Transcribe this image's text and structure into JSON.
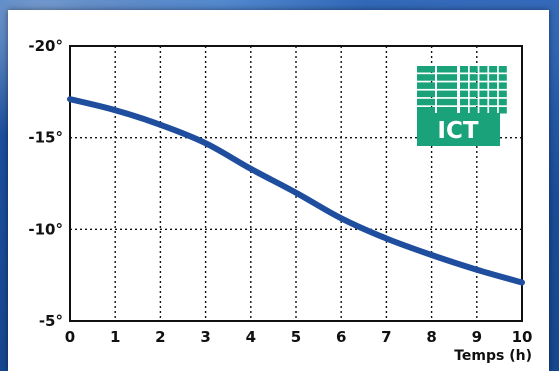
{
  "chart_data": {
    "type": "line",
    "title": "",
    "xlabel": "Temps (h)",
    "ylabel": "",
    "x": [
      0,
      1,
      2,
      3,
      4,
      5,
      6,
      7,
      8,
      9,
      10
    ],
    "series": [
      {
        "values": [
          17.1,
          16.5,
          15.7,
          14.7,
          13.3,
          12.0,
          10.6,
          9.5,
          8.6,
          7.8,
          7.1
        ]
      }
    ],
    "xlim": [
      0,
      10
    ],
    "ylim": [
      -20,
      -5
    ],
    "y_ticks": [
      -20,
      -15,
      -10,
      -5
    ],
    "y_tick_labels": [
      "-20°",
      "-15°",
      "-10°",
      "-5°"
    ],
    "x_tick_labels": [
      "0",
      "1",
      "2",
      "3",
      "4",
      "5",
      "6",
      "7",
      "8",
      "9",
      "10"
    ],
    "grid": true,
    "line_color": "#1f4e9e",
    "logo": {
      "text": "ICT",
      "color": "#1aa37a"
    }
  }
}
